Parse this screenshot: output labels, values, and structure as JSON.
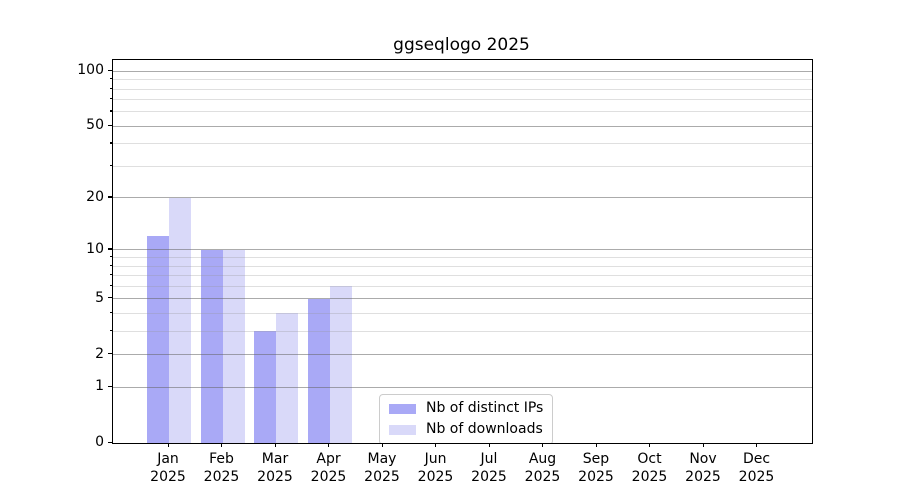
{
  "title": "ggseqlogo 2025",
  "chart_data": {
    "type": "bar",
    "title": "ggseqlogo 2025",
    "yscale": "log1p",
    "ylim": [
      0,
      115
    ],
    "grid": "on",
    "legend_position": "lower center",
    "categories": [
      {
        "month": "Jan",
        "year": "2025"
      },
      {
        "month": "Feb",
        "year": "2025"
      },
      {
        "month": "Mar",
        "year": "2025"
      },
      {
        "month": "Apr",
        "year": "2025"
      },
      {
        "month": "May",
        "year": "2025"
      },
      {
        "month": "Jun",
        "year": "2025"
      },
      {
        "month": "Jul",
        "year": "2025"
      },
      {
        "month": "Aug",
        "year": "2025"
      },
      {
        "month": "Sep",
        "year": "2025"
      },
      {
        "month": "Oct",
        "year": "2025"
      },
      {
        "month": "Nov",
        "year": "2025"
      },
      {
        "month": "Dec",
        "year": "2025"
      }
    ],
    "y_major_ticks": [
      0,
      1,
      2,
      5,
      10,
      20,
      50,
      100
    ],
    "y_minor_ticks": [
      3,
      4,
      6,
      7,
      8,
      9,
      30,
      40,
      60,
      70,
      80,
      90
    ],
    "series": [
      {
        "name": "Nb of distinct IPs",
        "color": "#a9a9f6",
        "values": [
          12,
          10,
          3,
          5,
          null,
          null,
          null,
          null,
          null,
          null,
          null,
          null
        ]
      },
      {
        "name": "Nb of downloads",
        "color": "#d9d9f9",
        "values": [
          20,
          10,
          4,
          6,
          null,
          null,
          null,
          null,
          null,
          null,
          null,
          null
        ]
      }
    ]
  },
  "colors": {
    "background": "#ffffff",
    "spine": "#000000",
    "grid_major": "rgba(102,102,102,0.55)",
    "grid_minor": "rgba(150,150,150,0.30)",
    "text": "#000000",
    "legend_border": "#cccccc"
  }
}
